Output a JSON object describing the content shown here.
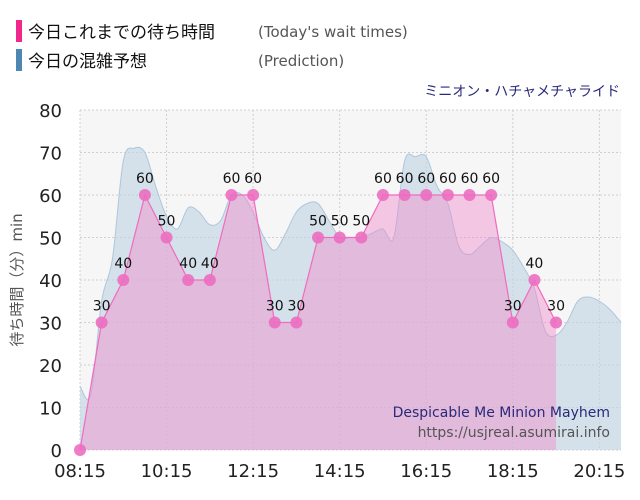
{
  "legend": [
    {
      "label": "今日これまでの待ち時間",
      "sub": "(Today's wait times)",
      "color": "#f0288c"
    },
    {
      "label": "今日の混雑予想",
      "sub": "(Prediction)",
      "color": "#4e86b2"
    }
  ],
  "ride_name": "ミニオン・ハチャメチャライド",
  "ride_name_en": "Despicable Me Minion Mayhem",
  "source": "https://usjreal.asumirai.info",
  "chart_data": {
    "type": "area",
    "ylabel": "待ち時間（分）min",
    "ylim": [
      0,
      80
    ],
    "yticks": [
      0,
      10,
      20,
      30,
      40,
      50,
      60,
      70,
      80
    ],
    "xlim": [
      "08:15",
      "20:45"
    ],
    "xticks": [
      "08:15",
      "10:15",
      "12:15",
      "14:15",
      "16:15",
      "18:15",
      "20:15"
    ],
    "grid": true,
    "series": [
      {
        "name": "今日これまでの待ち時間",
        "color": "#f0288c",
        "x": [
          "08:15",
          "08:45",
          "09:15",
          "09:45",
          "10:15",
          "10:45",
          "11:15",
          "11:45",
          "12:15",
          "12:45",
          "13:15",
          "13:45",
          "14:15",
          "14:45",
          "15:15",
          "15:45",
          "16:15",
          "16:45",
          "17:15",
          "17:45",
          "18:15",
          "18:45",
          "19:15"
        ],
        "values": [
          0,
          30,
          40,
          60,
          50,
          40,
          40,
          60,
          60,
          30,
          30,
          50,
          50,
          50,
          60,
          60,
          60,
          60,
          60,
          60,
          30,
          40,
          30
        ]
      },
      {
        "name": "今日の混雑予想",
        "color": "#4e86b2",
        "x": [
          "08:15",
          "08:30",
          "08:45",
          "09:00",
          "09:15",
          "09:30",
          "09:45",
          "10:00",
          "10:15",
          "10:30",
          "10:45",
          "11:00",
          "11:15",
          "11:30",
          "11:45",
          "12:00",
          "12:15",
          "12:30",
          "12:45",
          "13:00",
          "13:15",
          "13:30",
          "13:45",
          "14:00",
          "14:15",
          "14:30",
          "14:45",
          "15:00",
          "15:15",
          "15:30",
          "15:45",
          "16:00",
          "16:15",
          "16:30",
          "16:45",
          "17:00",
          "17:15",
          "17:30",
          "17:45",
          "18:00",
          "18:15",
          "18:30",
          "18:45",
          "19:00",
          "19:15",
          "19:30",
          "19:45",
          "20:00",
          "20:15",
          "20:30",
          "20:45"
        ],
        "values": [
          15,
          13,
          35,
          45,
          68,
          71,
          70,
          62,
          55,
          52,
          57,
          56,
          53,
          54,
          60,
          60,
          56,
          50,
          47,
          51,
          56,
          58,
          58,
          54,
          50,
          50,
          50,
          51,
          52,
          50,
          68,
          69,
          69,
          62,
          58,
          48,
          46,
          48,
          50,
          49,
          47,
          43,
          38,
          28,
          27,
          30,
          35,
          36,
          35,
          33,
          30
        ]
      }
    ]
  }
}
